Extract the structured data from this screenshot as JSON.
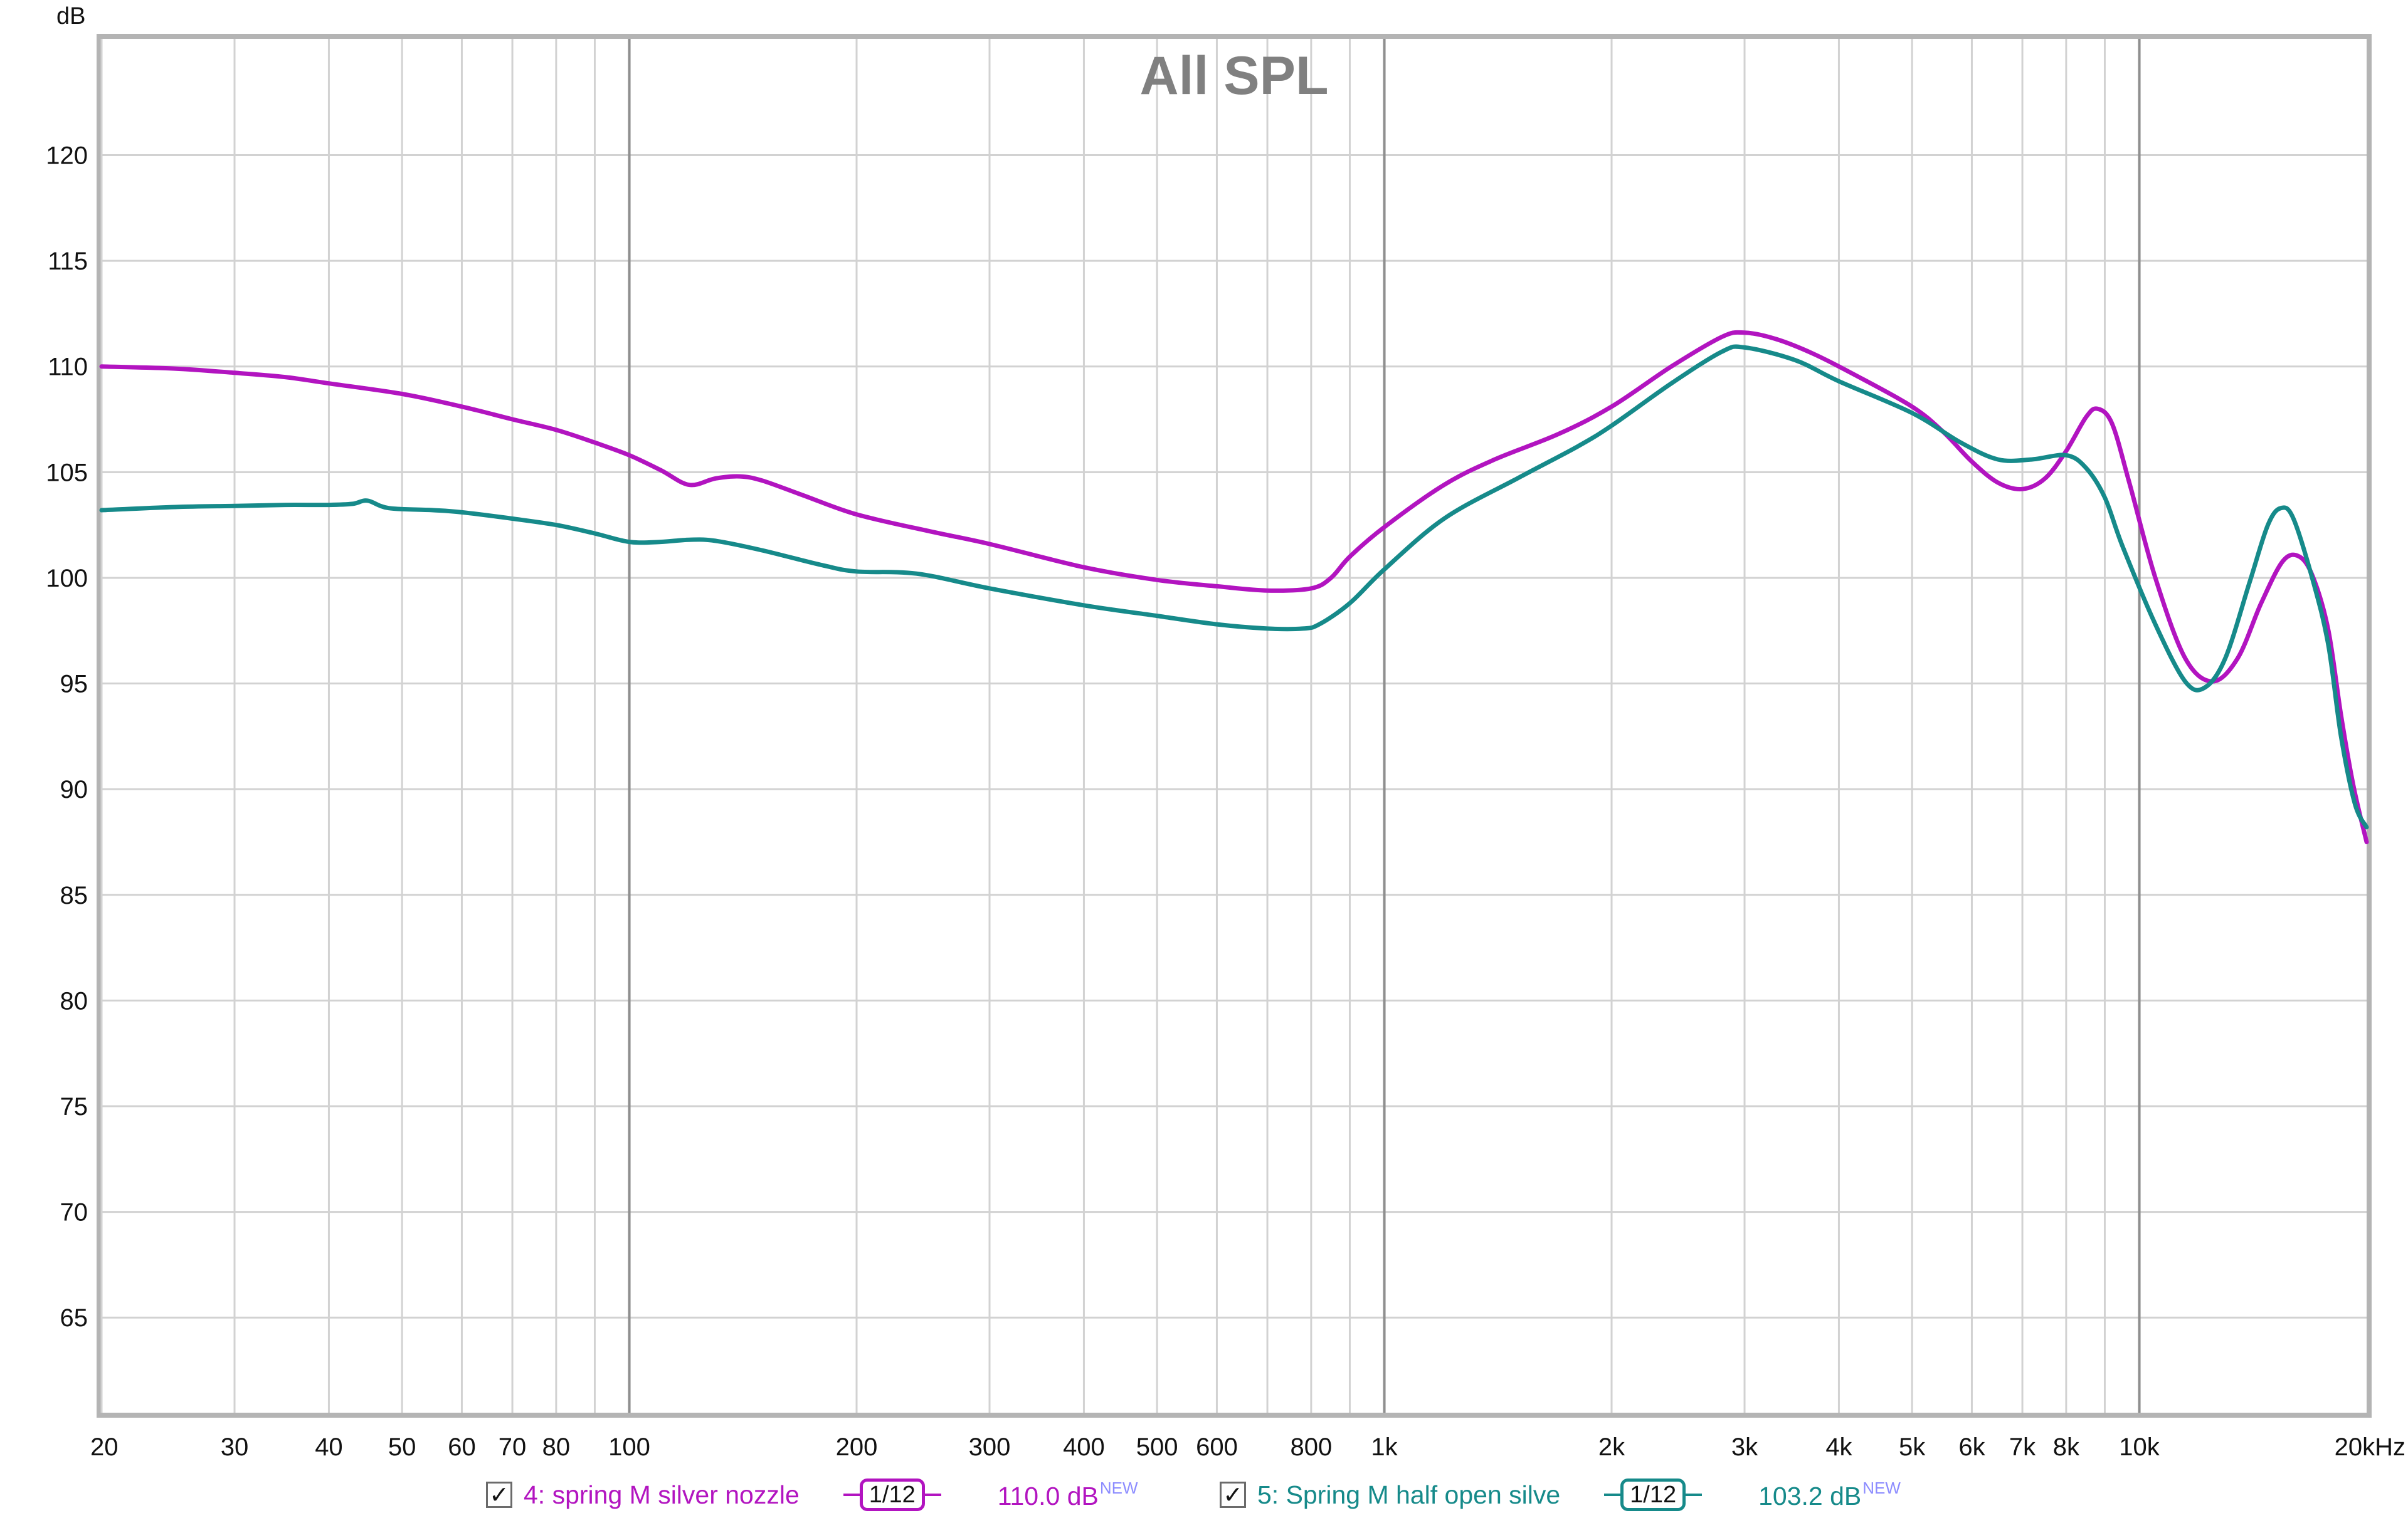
{
  "chart_data": {
    "type": "line",
    "title": "All SPL",
    "ylabel": "dB",
    "xlabel": "",
    "x_scale": "log",
    "xlim": [
      20,
      20000
    ],
    "ylim": [
      60.5,
      125.5
    ],
    "grid": true,
    "y_ticks": [
      65,
      70,
      75,
      80,
      85,
      90,
      95,
      100,
      105,
      110,
      115,
      120
    ],
    "x_ticks": [
      {
        "v": 20,
        "label": "20"
      },
      {
        "v": 30,
        "label": "30"
      },
      {
        "v": 40,
        "label": "40"
      },
      {
        "v": 50,
        "label": "50"
      },
      {
        "v": 60,
        "label": "60"
      },
      {
        "v": 70,
        "label": "70"
      },
      {
        "v": 80,
        "label": "80"
      },
      {
        "v": 100,
        "label": "100"
      },
      {
        "v": 200,
        "label": "200"
      },
      {
        "v": 300,
        "label": "300"
      },
      {
        "v": 400,
        "label": "400"
      },
      {
        "v": 500,
        "label": "500"
      },
      {
        "v": 600,
        "label": "600"
      },
      {
        "v": 800,
        "label": "800"
      },
      {
        "v": 1000,
        "label": "1k"
      },
      {
        "v": 2000,
        "label": "2k"
      },
      {
        "v": 3000,
        "label": "3k"
      },
      {
        "v": 4000,
        "label": "4k"
      },
      {
        "v": 5000,
        "label": "5k"
      },
      {
        "v": 6000,
        "label": "6k"
      },
      {
        "v": 7000,
        "label": "7k"
      },
      {
        "v": 8000,
        "label": "8k"
      },
      {
        "v": 10000,
        "label": "10k"
      },
      {
        "v": 20000,
        "label": "20kHz"
      }
    ],
    "minor_grid": [
      20,
      30,
      40,
      50,
      60,
      70,
      80,
      90,
      200,
      300,
      400,
      500,
      600,
      700,
      800,
      900,
      2000,
      3000,
      4000,
      5000,
      6000,
      7000,
      8000,
      9000
    ],
    "major_grid": [
      100,
      1000,
      10000
    ],
    "series": [
      {
        "name": "4: spring M silver nozzle",
        "color": "#b214c0",
        "smoothing": "1/12",
        "level": "110.0 dB",
        "badge": "NEW",
        "points": [
          [
            20,
            110.0
          ],
          [
            25,
            109.9
          ],
          [
            30,
            109.7
          ],
          [
            35,
            109.5
          ],
          [
            40,
            109.2
          ],
          [
            50,
            108.7
          ],
          [
            60,
            108.1
          ],
          [
            70,
            107.5
          ],
          [
            80,
            107.0
          ],
          [
            90,
            106.4
          ],
          [
            100,
            105.8
          ],
          [
            110,
            105.1
          ],
          [
            120,
            104.4
          ],
          [
            130,
            104.7
          ],
          [
            140,
            104.8
          ],
          [
            150,
            104.6
          ],
          [
            170,
            103.9
          ],
          [
            200,
            103.0
          ],
          [
            250,
            102.2
          ],
          [
            300,
            101.6
          ],
          [
            400,
            100.5
          ],
          [
            500,
            99.9
          ],
          [
            600,
            99.6
          ],
          [
            700,
            99.4
          ],
          [
            800,
            99.5
          ],
          [
            850,
            100.0
          ],
          [
            900,
            101.0
          ],
          [
            1000,
            102.4
          ],
          [
            1200,
            104.4
          ],
          [
            1400,
            105.6
          ],
          [
            1700,
            106.8
          ],
          [
            2000,
            108.1
          ],
          [
            2400,
            110.0
          ],
          [
            2800,
            111.4
          ],
          [
            3000,
            111.6
          ],
          [
            3300,
            111.3
          ],
          [
            3700,
            110.6
          ],
          [
            4200,
            109.6
          ],
          [
            5000,
            108.1
          ],
          [
            5500,
            106.9
          ],
          [
            6000,
            105.5
          ],
          [
            6500,
            104.5
          ],
          [
            7000,
            104.2
          ],
          [
            7500,
            104.7
          ],
          [
            8000,
            106.0
          ],
          [
            8500,
            107.6
          ],
          [
            8800,
            108.0
          ],
          [
            9200,
            107.3
          ],
          [
            9700,
            104.5
          ],
          [
            10500,
            100.0
          ],
          [
            11500,
            96.2
          ],
          [
            12500,
            95.1
          ],
          [
            13500,
            96.2
          ],
          [
            14500,
            98.8
          ],
          [
            15500,
            100.8
          ],
          [
            16300,
            101.0
          ],
          [
            17000,
            100.0
          ],
          [
            17800,
            97.5
          ],
          [
            18500,
            93.5
          ],
          [
            19200,
            90.2
          ],
          [
            20000,
            87.5
          ]
        ]
      },
      {
        "name": "5: Spring M half open silve",
        "color": "#168a8a",
        "smoothing": "1/12",
        "level": "103.2 dB",
        "badge": "NEW",
        "points": [
          [
            20,
            103.2
          ],
          [
            25,
            103.35
          ],
          [
            30,
            103.4
          ],
          [
            35,
            103.45
          ],
          [
            40,
            103.45
          ],
          [
            43,
            103.5
          ],
          [
            45,
            103.65
          ],
          [
            48,
            103.3
          ],
          [
            55,
            103.2
          ],
          [
            60,
            103.1
          ],
          [
            70,
            102.8
          ],
          [
            80,
            102.5
          ],
          [
            90,
            102.1
          ],
          [
            100,
            101.7
          ],
          [
            110,
            101.7
          ],
          [
            120,
            101.8
          ],
          [
            130,
            101.75
          ],
          [
            150,
            101.3
          ],
          [
            180,
            100.6
          ],
          [
            200,
            100.3
          ],
          [
            240,
            100.2
          ],
          [
            300,
            99.5
          ],
          [
            400,
            98.7
          ],
          [
            500,
            98.2
          ],
          [
            600,
            97.8
          ],
          [
            700,
            97.6
          ],
          [
            780,
            97.6
          ],
          [
            820,
            97.8
          ],
          [
            900,
            98.8
          ],
          [
            1000,
            100.4
          ],
          [
            1200,
            102.8
          ],
          [
            1500,
            104.7
          ],
          [
            1800,
            106.2
          ],
          [
            2000,
            107.2
          ],
          [
            2400,
            109.2
          ],
          [
            2800,
            110.7
          ],
          [
            3000,
            110.9
          ],
          [
            3500,
            110.3
          ],
          [
            4000,
            109.3
          ],
          [
            5000,
            107.8
          ],
          [
            5800,
            106.4
          ],
          [
            6500,
            105.6
          ],
          [
            7200,
            105.6
          ],
          [
            8000,
            105.8
          ],
          [
            8500,
            105.2
          ],
          [
            9000,
            103.8
          ],
          [
            9500,
            101.5
          ],
          [
            10500,
            97.8
          ],
          [
            11500,
            95.1
          ],
          [
            12200,
            94.8
          ],
          [
            13000,
            96.2
          ],
          [
            14000,
            99.8
          ],
          [
            14800,
            102.5
          ],
          [
            15400,
            103.3
          ],
          [
            16000,
            102.8
          ],
          [
            17000,
            99.8
          ],
          [
            17800,
            96.8
          ],
          [
            18500,
            92.5
          ],
          [
            19300,
            89.3
          ],
          [
            20000,
            88.2
          ]
        ]
      }
    ]
  }
}
